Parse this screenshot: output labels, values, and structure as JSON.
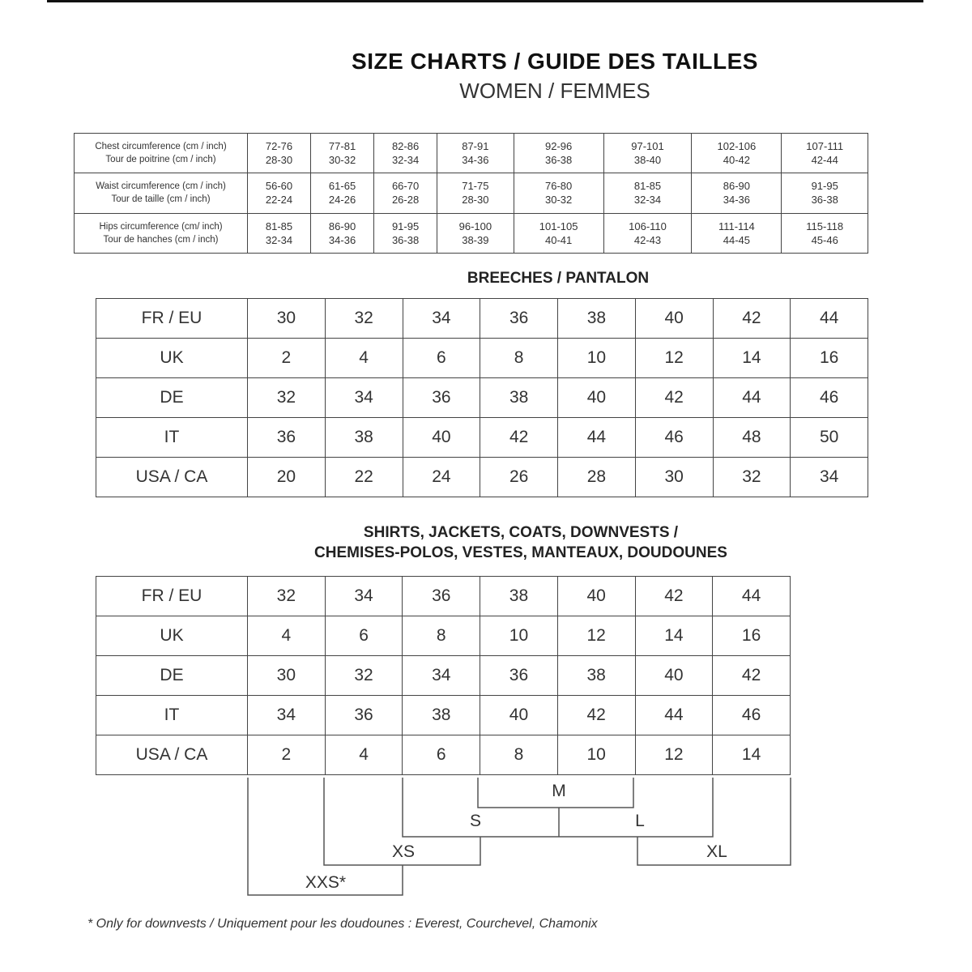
{
  "header": {
    "title": "SIZE CHARTS / GUIDE DES TAILLES",
    "subtitle": "WOMEN / FEMMES"
  },
  "measurements": {
    "rows": [
      {
        "label1": "Chest circumference (cm / inch)",
        "label2": "Tour de poitrine (cm / inch)",
        "cm": [
          "72-76",
          "77-81",
          "82-86",
          "87-91",
          "92-96",
          "97-101",
          "102-106",
          "107-111"
        ],
        "inch": [
          "28-30",
          "30-32",
          "32-34",
          "34-36",
          "36-38",
          "38-40",
          "40-42",
          "42-44"
        ]
      },
      {
        "label1": "Waist circumference (cm / inch)",
        "label2": "Tour de taille (cm / inch)",
        "cm": [
          "56-60",
          "61-65",
          "66-70",
          "71-75",
          "76-80",
          "81-85",
          "86-90",
          "91-95"
        ],
        "inch": [
          "22-24",
          "24-26",
          "26-28",
          "28-30",
          "30-32",
          "32-34",
          "34-36",
          "36-38"
        ]
      },
      {
        "label1": "Hips circumference (cm/ inch)",
        "label2": "Tour de hanches (cm / inch)",
        "cm": [
          "81-85",
          "86-90",
          "91-95",
          "96-100",
          "101-105",
          "106-110",
          "111-114",
          "115-118"
        ],
        "inch": [
          "32-34",
          "34-36",
          "36-38",
          "38-39",
          "40-41",
          "42-43",
          "44-45",
          "45-46"
        ]
      }
    ]
  },
  "breeches": {
    "title": "BREECHES / PANTALON",
    "rows": [
      {
        "label": "FR / EU",
        "values": [
          "30",
          "32",
          "34",
          "36",
          "38",
          "40",
          "42",
          "44"
        ]
      },
      {
        "label": "UK",
        "values": [
          "2",
          "4",
          "6",
          "8",
          "10",
          "12",
          "14",
          "16"
        ]
      },
      {
        "label": "DE",
        "values": [
          "32",
          "34",
          "36",
          "38",
          "40",
          "42",
          "44",
          "46"
        ]
      },
      {
        "label": "IT",
        "values": [
          "36",
          "38",
          "40",
          "42",
          "44",
          "46",
          "48",
          "50"
        ]
      },
      {
        "label": "USA / CA",
        "values": [
          "20",
          "22",
          "24",
          "26",
          "28",
          "30",
          "32",
          "34"
        ]
      }
    ]
  },
  "shirts": {
    "title1": "SHIRTS, JACKETS, COATS, DOWNVESTS /",
    "title2": "CHEMISES-POLOS, VESTES, MANTEAUX, DOUDOUNES",
    "rows": [
      {
        "label": "FR / EU",
        "values": [
          "32",
          "34",
          "36",
          "38",
          "40",
          "42",
          "44"
        ]
      },
      {
        "label": "UK",
        "values": [
          "4",
          "6",
          "8",
          "10",
          "12",
          "14",
          "16"
        ]
      },
      {
        "label": "DE",
        "values": [
          "30",
          "32",
          "34",
          "36",
          "38",
          "40",
          "42"
        ]
      },
      {
        "label": "IT",
        "values": [
          "34",
          "36",
          "38",
          "40",
          "42",
          "44",
          "46"
        ]
      },
      {
        "label": "USA / CA",
        "values": [
          "2",
          "4",
          "6",
          "8",
          "10",
          "12",
          "14"
        ]
      }
    ],
    "letter_sizes": {
      "m": "M",
      "s": "S",
      "l": "L",
      "xs": "XS",
      "xl": "XL",
      "xxs": "XXS*"
    }
  },
  "footnote": "* Only for downvests / Uniquement pour les doudounes : Everest, Courchevel, Chamonix"
}
